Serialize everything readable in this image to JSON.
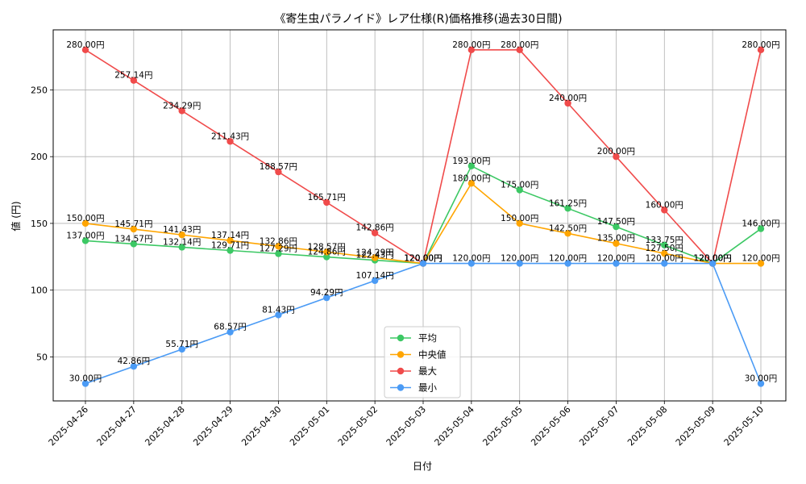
{
  "chart_data": {
    "type": "line",
    "title": "《寄生虫パラノイド》レア仕様(R)価格推移(過去30日間)",
    "xlabel": "日付",
    "ylabel": "値 (円)",
    "ylim": [
      17,
      295
    ],
    "yticks": [
      50,
      100,
      150,
      200,
      250
    ],
    "grid": true,
    "legend_position": "bottom-center",
    "value_suffix": "円",
    "x": [
      "2025-04-26",
      "2025-04-27",
      "2025-04-28",
      "2025-04-29",
      "2025-04-30",
      "2025-05-01",
      "2025-05-02",
      "2025-05-03",
      "2025-05-04",
      "2025-05-05",
      "2025-05-06",
      "2025-05-07",
      "2025-05-08",
      "2025-05-09",
      "2025-05-10"
    ],
    "series": [
      {
        "name": "平均",
        "color": "#3cc864",
        "values": [
          137.0,
          134.57,
          132.14,
          129.71,
          127.29,
          124.86,
          122.43,
          120.0,
          193.0,
          175.0,
          161.25,
          147.5,
          133.75,
          120.0,
          146.0
        ]
      },
      {
        "name": "中央値",
        "color": "#ffa500",
        "values": [
          150.0,
          145.71,
          141.43,
          137.14,
          132.86,
          128.57,
          124.29,
          120.0,
          180.0,
          150.0,
          142.5,
          135.0,
          127.5,
          120.0,
          120.0
        ]
      },
      {
        "name": "最大",
        "color": "#f04b4b",
        "values": [
          280.0,
          257.14,
          234.29,
          211.43,
          188.57,
          165.71,
          142.86,
          120.0,
          280.0,
          280.0,
          240.0,
          200.0,
          160.0,
          120.0,
          280.0
        ]
      },
      {
        "name": "最小",
        "color": "#4b9bf5",
        "values": [
          30.0,
          42.86,
          55.71,
          68.57,
          81.43,
          94.29,
          107.14,
          120.0,
          120.0,
          120.0,
          120.0,
          120.0,
          120.0,
          120.0,
          30.0
        ]
      }
    ]
  }
}
